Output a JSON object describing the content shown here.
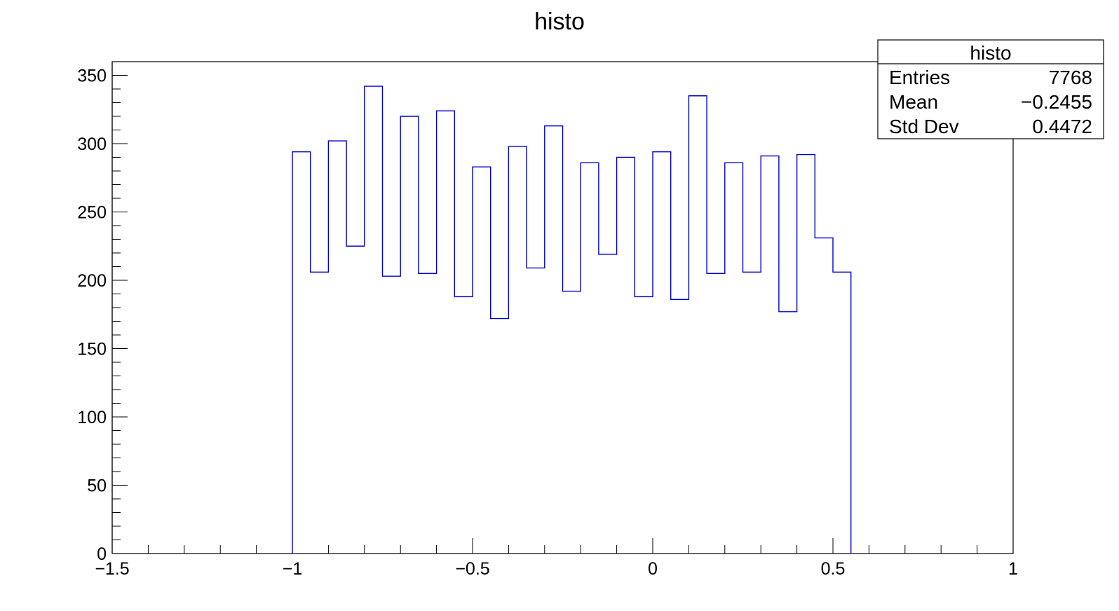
{
  "chart_data": {
    "type": "bar",
    "title": "histo",
    "xlabel": "",
    "ylabel": "",
    "xlim": [
      -1.5,
      1
    ],
    "ylim": [
      0,
      360
    ],
    "grid": false,
    "legend": "top-right",
    "bin_width": 0.05,
    "bin_edges": [
      -1.0,
      -0.95,
      -0.9,
      -0.85,
      -0.8,
      -0.75,
      -0.7,
      -0.65,
      -0.6,
      -0.55,
      -0.5,
      -0.45,
      -0.4,
      -0.35,
      -0.3,
      -0.25,
      -0.2,
      -0.15,
      -0.1,
      -0.05,
      0.0,
      0.05,
      0.1,
      0.15,
      0.2,
      0.25,
      0.3,
      0.35,
      0.4,
      0.45,
      0.5,
      0.55
    ],
    "values": [
      294,
      206,
      302,
      225,
      342,
      203,
      320,
      205,
      324,
      188,
      283,
      172,
      298,
      209,
      313,
      192,
      286,
      219,
      290,
      188,
      294,
      186,
      335,
      205,
      286,
      206,
      291,
      177,
      292,
      231,
      206
    ],
    "x_ticks": [
      {
        "value": -1.5,
        "label": "−1.5"
      },
      {
        "value": -1.0,
        "label": "−1"
      },
      {
        "value": -0.5,
        "label": "−0.5"
      },
      {
        "value": 0.0,
        "label": "0"
      },
      {
        "value": 0.5,
        "label": "0.5"
      },
      {
        "value": 1.0,
        "label": "1"
      }
    ],
    "y_ticks": [
      {
        "value": 0,
        "label": "0"
      },
      {
        "value": 50,
        "label": "50"
      },
      {
        "value": 100,
        "label": "100"
      },
      {
        "value": 150,
        "label": "150"
      },
      {
        "value": 200,
        "label": "200"
      },
      {
        "value": 250,
        "label": "250"
      },
      {
        "value": 300,
        "label": "300"
      },
      {
        "value": 350,
        "label": "350"
      }
    ],
    "line_color": "#0000cc"
  },
  "stats_box": {
    "title": "histo",
    "rows": [
      {
        "label": "Entries",
        "value": "7768"
      },
      {
        "label": "Mean",
        "value": "−0.2455"
      },
      {
        "label": "Std Dev",
        "value": "0.4472"
      }
    ]
  }
}
